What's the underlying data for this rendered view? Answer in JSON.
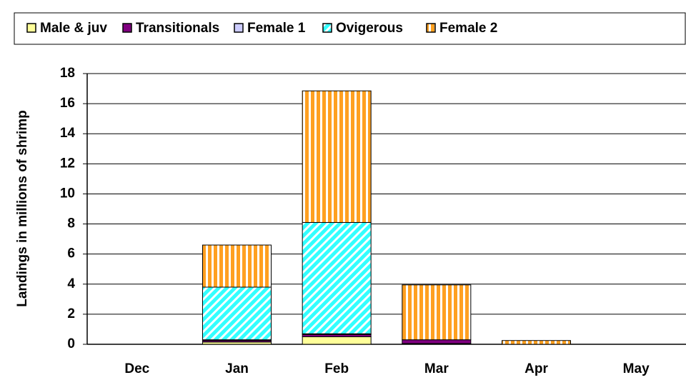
{
  "chart_data": {
    "type": "bar",
    "stacked": true,
    "y_label": "Landings in millions of shrimp",
    "categories": [
      "Dec",
      "Jan",
      "Feb",
      "Mar",
      "Apr",
      "May"
    ],
    "series": [
      {
        "name": "Male & juv",
        "color": "#ffff99",
        "pattern": "solid",
        "values": [
          0,
          0.15,
          0.5,
          0.05,
          0,
          0
        ]
      },
      {
        "name": "Transitionals",
        "color": "#800080",
        "pattern": "solid",
        "values": [
          0,
          0.1,
          0.15,
          0.25,
          0,
          0
        ]
      },
      {
        "name": "Female 1",
        "color": "#ccccff",
        "pattern": "solid",
        "values": [
          0,
          0.05,
          0.05,
          0,
          0,
          0
        ]
      },
      {
        "name": "Ovigerous",
        "color": "#33ffff",
        "pattern": "diagonal",
        "values": [
          0,
          3.5,
          7.4,
          0,
          0,
          0
        ]
      },
      {
        "name": "Female 2",
        "color": "#ffa020",
        "pattern": "vertical",
        "values": [
          0,
          2.8,
          8.75,
          3.65,
          0.25,
          0
        ]
      }
    ],
    "ylim": [
      0,
      18
    ],
    "yticks": [
      0,
      2,
      4,
      6,
      8,
      10,
      12,
      14,
      16,
      18
    ],
    "grid": true,
    "legend": "top"
  }
}
